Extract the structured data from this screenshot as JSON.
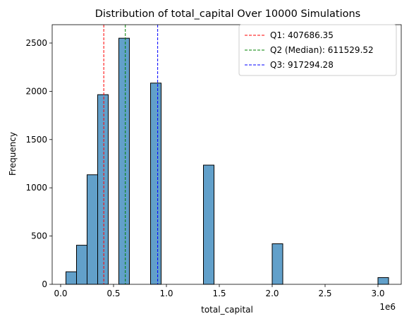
{
  "chart_data": {
    "type": "bar",
    "title": "Distribution of total_capital Over 10000 Simulations",
    "xlabel": "total_capital",
    "ylabel": "Frequency",
    "x_offset_label": "1e6",
    "xlim": [
      -0.08,
      3.22
    ],
    "ylim": [
      0,
      2690
    ],
    "x_ticks": [
      0.0,
      0.5,
      1.0,
      1.5,
      2.0,
      2.5,
      3.0
    ],
    "x_tick_labels": [
      "0.0",
      "0.5",
      "1.0",
      "1.5",
      "2.0",
      "2.5",
      "3.0"
    ],
    "y_ticks": [
      0,
      500,
      1000,
      1500,
      2000,
      2500
    ],
    "y_tick_labels": [
      "0",
      "500",
      "1000",
      "1500",
      "2000",
      "2500"
    ],
    "bar_color": "#1f77b4",
    "bins": [
      {
        "start": 0.05,
        "end": 0.15,
        "count": 130
      },
      {
        "start": 0.15,
        "end": 0.25,
        "count": 405
      },
      {
        "start": 0.25,
        "end": 0.35,
        "count": 1135
      },
      {
        "start": 0.35,
        "end": 0.45,
        "count": 1965
      },
      {
        "start": 0.55,
        "end": 0.65,
        "count": 2550
      },
      {
        "start": 0.85,
        "end": 0.95,
        "count": 2085
      },
      {
        "start": 1.35,
        "end": 1.45,
        "count": 1235
      },
      {
        "start": 2.0,
        "end": 2.1,
        "count": 420
      },
      {
        "start": 3.0,
        "end": 3.1,
        "count": 70
      }
    ],
    "lines": [
      {
        "label": "Q1: 407686.35",
        "x": 0.40768635,
        "color": "#ff0000"
      },
      {
        "label": "Q2 (Median): 611529.52",
        "x": 0.61152952,
        "color": "#008000"
      },
      {
        "label": "Q3: 917294.28",
        "x": 0.91729428,
        "color": "#0000ff"
      }
    ],
    "grid": false,
    "legend_position": "top-right"
  }
}
